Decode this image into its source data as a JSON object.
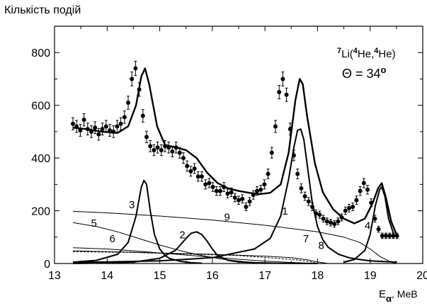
{
  "chart_data": {
    "type": "scatter",
    "ylabel": "Кількість подій",
    "xlabel": "E",
    "xlabel_sub": "α",
    "xlabel_unit": ", MeB",
    "xlim": [
      13,
      20
    ],
    "ylim": [
      0,
      900
    ],
    "xticks": [
      13,
      14,
      15,
      16,
      17,
      18,
      19,
      20
    ],
    "yticks": [
      0,
      200,
      400,
      600,
      800
    ],
    "annotation_reaction": "7Li(4He,4He)",
    "annotation_reaction_parts": {
      "pre_sup": "7",
      "li": "Li(",
      "he1_sup": "4",
      "he1": "He,",
      "he2_sup": "4",
      "he2": "He)"
    },
    "annotation_angle": "Θ = 34",
    "annotation_angle_sup": "o",
    "curve_labels": [
      "1",
      "2",
      "3",
      "4",
      "5",
      "6",
      "7",
      "8",
      "9"
    ],
    "data_points": {
      "x": [
        13.35,
        13.42,
        13.49,
        13.56,
        13.63,
        13.7,
        13.77,
        13.84,
        13.91,
        13.98,
        14.05,
        14.12,
        14.19,
        14.26,
        14.33,
        14.4,
        14.47,
        14.54,
        14.61,
        14.68,
        14.75,
        14.82,
        14.89,
        14.96,
        15.03,
        15.1,
        15.17,
        15.24,
        15.31,
        15.38,
        15.45,
        15.52,
        15.59,
        15.66,
        15.73,
        15.8,
        15.87,
        15.94,
        16.01,
        16.08,
        16.15,
        16.22,
        16.29,
        16.36,
        16.43,
        16.5,
        16.57,
        16.64,
        16.71,
        16.78,
        16.85,
        16.92,
        16.99,
        17.06,
        17.13,
        17.2,
        17.27,
        17.34,
        17.41,
        17.48,
        17.55,
        17.62,
        17.69,
        17.76,
        17.83,
        17.9,
        17.97,
        18.04,
        18.11,
        18.18,
        18.25,
        18.32,
        18.39,
        18.46,
        18.53,
        18.6,
        18.67,
        18.74,
        18.81,
        18.88,
        18.95,
        19.02,
        19.09,
        19.16,
        19.23,
        19.3,
        19.37,
        19.44,
        19.51
      ],
      "y": [
        530,
        520,
        505,
        545,
        510,
        500,
        515,
        490,
        510,
        520,
        505,
        500,
        520,
        530,
        555,
        610,
        700,
        740,
        660,
        560,
        480,
        445,
        430,
        440,
        430,
        445,
        440,
        425,
        440,
        420,
        400,
        370,
        350,
        360,
        330,
        330,
        300,
        305,
        290,
        275,
        275,
        290,
        265,
        270,
        250,
        240,
        245,
        215,
        235,
        260,
        275,
        280,
        300,
        340,
        420,
        520,
        650,
        700,
        640,
        510,
        410,
        340,
        285,
        255,
        235,
        215,
        190,
        185,
        170,
        160,
        155,
        150,
        160,
        175,
        200,
        210,
        215,
        240,
        275,
        305,
        280,
        230,
        170,
        130,
        105,
        105,
        105,
        105,
        105
      ]
    },
    "series": [
      {
        "name": "fit",
        "x": [
          13.35,
          13.6,
          13.9,
          14.2,
          14.4,
          14.55,
          14.65,
          14.72,
          14.8,
          14.95,
          15.1,
          15.3,
          15.5,
          15.7,
          15.9,
          16.1,
          16.3,
          16.5,
          16.7,
          16.9,
          17.1,
          17.3,
          17.45,
          17.58,
          17.66,
          17.72,
          17.8,
          17.95,
          18.1,
          18.3,
          18.5,
          18.7,
          18.9,
          19.05,
          19.15,
          19.22,
          19.3,
          19.4,
          19.5
        ],
        "y": [
          515,
          510,
          500,
          495,
          520,
          600,
          710,
          740,
          680,
          520,
          450,
          440,
          430,
          400,
          345,
          305,
          285,
          275,
          268,
          263,
          268,
          300,
          420,
          620,
          700,
          680,
          560,
          380,
          270,
          205,
          170,
          152,
          170,
          230,
          285,
          305,
          250,
          160,
          110
        ]
      },
      {
        "name": "1",
        "x": [
          13.35,
          14.0,
          15.0,
          16.0,
          16.8,
          17.1,
          17.3,
          17.45,
          17.55,
          17.62,
          17.68,
          17.74,
          17.8,
          17.9,
          18.0,
          18.1,
          18.2,
          18.4,
          18.6,
          18.8,
          19.0,
          19.5
        ],
        "y": [
          5,
          6,
          10,
          22,
          55,
          95,
          180,
          320,
          440,
          505,
          510,
          470,
          380,
          230,
          140,
          90,
          62,
          35,
          22,
          15,
          10,
          5
        ]
      },
      {
        "name": "2",
        "x": [
          13.35,
          14.5,
          15.0,
          15.3,
          15.5,
          15.6,
          15.7,
          15.8,
          15.9,
          16.0,
          16.1,
          16.3,
          16.5,
          16.8,
          17.2,
          18.0
        ],
        "y": [
          0,
          5,
          20,
          50,
          95,
          115,
          120,
          110,
          85,
          55,
          30,
          12,
          6,
          3,
          1,
          0
        ]
      },
      {
        "name": "3",
        "x": [
          13.35,
          13.8,
          14.2,
          14.4,
          14.55,
          14.65,
          14.7,
          14.75,
          14.82,
          14.9,
          15.0,
          15.1,
          15.2,
          15.4,
          15.6,
          15.8
        ],
        "y": [
          5,
          12,
          35,
          80,
          180,
          290,
          315,
          300,
          200,
          110,
          55,
          30,
          18,
          8,
          3,
          1
        ]
      },
      {
        "name": "4",
        "x": [
          18.5,
          18.7,
          18.9,
          19.0,
          19.1,
          19.18,
          19.22,
          19.28,
          19.35,
          19.45,
          19.5
        ],
        "y": [
          5,
          15,
          50,
          110,
          220,
          280,
          290,
          255,
          170,
          110,
          105
        ]
      },
      {
        "name": "5",
        "x": [
          13.35,
          13.8,
          14.2,
          14.6,
          15.0,
          15.4,
          15.8,
          16.2,
          16.6,
          17.0,
          17.4
        ],
        "y": [
          155,
          140,
          120,
          95,
          70,
          48,
          30,
          16,
          7,
          2,
          0
        ]
      },
      {
        "name": "6",
        "x": [
          13.35,
          14.0,
          14.5,
          15.0,
          15.5,
          16.0,
          16.5,
          17.0,
          17.5,
          18.0
        ],
        "y": [
          60,
          55,
          48,
          40,
          32,
          24,
          16,
          9,
          4,
          0
        ]
      },
      {
        "name": "7",
        "x": [
          13.35,
          14.0,
          15.0,
          16.0,
          17.0,
          17.5,
          17.8,
          18.0,
          18.2
        ],
        "y": [
          48,
          45,
          40,
          35,
          28,
          22,
          14,
          6,
          0
        ]
      },
      {
        "name": "8",
        "x": [
          13.35,
          14.5,
          15.5,
          16.5,
          17.2,
          17.6,
          17.9,
          18.0
        ],
        "y": [
          45,
          42,
          36,
          30,
          20,
          14,
          6,
          0
        ]
      },
      {
        "name": "9",
        "x": [
          13.35,
          14.0,
          15.0,
          16.0,
          17.0,
          18.0,
          18.5,
          18.8,
          19.0,
          19.2,
          19.4,
          19.5
        ],
        "y": [
          198,
          192,
          180,
          165,
          145,
          120,
          100,
          80,
          55,
          25,
          5,
          0
        ]
      }
    ]
  }
}
